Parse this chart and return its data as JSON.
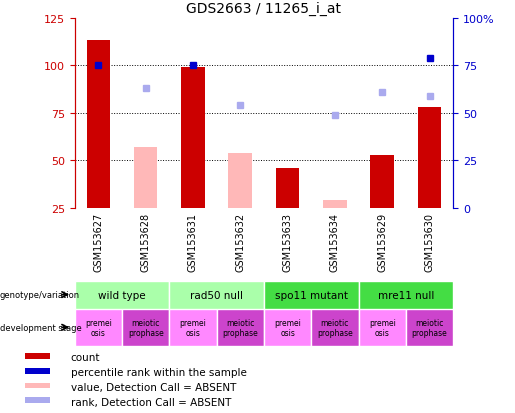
{
  "title": "GDS2663 / 11265_i_at",
  "samples": [
    "GSM153627",
    "GSM153628",
    "GSM153631",
    "GSM153632",
    "GSM153633",
    "GSM153634",
    "GSM153629",
    "GSM153630"
  ],
  "count_values": [
    113,
    null,
    99,
    null,
    46,
    null,
    53,
    78
  ],
  "rank_values": [
    75,
    null,
    75,
    null,
    null,
    null,
    null,
    79
  ],
  "absent_value_values": [
    null,
    57,
    null,
    54,
    null,
    29,
    null,
    null
  ],
  "absent_rank_values": [
    null,
    63,
    null,
    54,
    null,
    49,
    61,
    59
  ],
  "ylim_left": [
    25,
    125
  ],
  "left_ticks": [
    25,
    50,
    75,
    100,
    125
  ],
  "right_ticks": [
    0,
    25,
    50,
    75,
    100
  ],
  "right_tick_labels": [
    "0",
    "25",
    "50",
    "75",
    "100%"
  ],
  "grid_values": [
    50,
    75,
    100
  ],
  "color_red": "#cc0000",
  "color_pink": "#ffb8b8",
  "color_blue": "#0000cc",
  "color_lightblue": "#aaaaee",
  "color_gray_bg": "#c0c0c0",
  "genotype_groups": [
    {
      "label": "wild type",
      "start": 0,
      "end": 1,
      "color": "#aaffaa"
    },
    {
      "label": "rad50 null",
      "start": 2,
      "end": 3,
      "color": "#aaffaa"
    },
    {
      "label": "spo11 mutant",
      "start": 4,
      "end": 5,
      "color": "#44dd44"
    },
    {
      "label": "mre11 null",
      "start": 6,
      "end": 7,
      "color": "#44dd44"
    }
  ],
  "dev_stage_labels": [
    "premei\nosis",
    "meiotic\nprophase",
    "premei\nosis",
    "meiotic\nprophase",
    "premei\nosis",
    "meiotic\nprophase",
    "premei\nosis",
    "meiotic\nprophase"
  ],
  "dev_colors": [
    "#ff88ff",
    "#cc44cc",
    "#ff88ff",
    "#cc44cc",
    "#ff88ff",
    "#cc44cc",
    "#ff88ff",
    "#cc44cc"
  ],
  "legend_items": [
    {
      "color": "#cc0000",
      "label": "count"
    },
    {
      "color": "#0000cc",
      "label": "percentile rank within the sample"
    },
    {
      "color": "#ffb8b8",
      "label": "value, Detection Call = ABSENT"
    },
    {
      "color": "#aaaaee",
      "label": "rank, Detection Call = ABSENT"
    }
  ]
}
